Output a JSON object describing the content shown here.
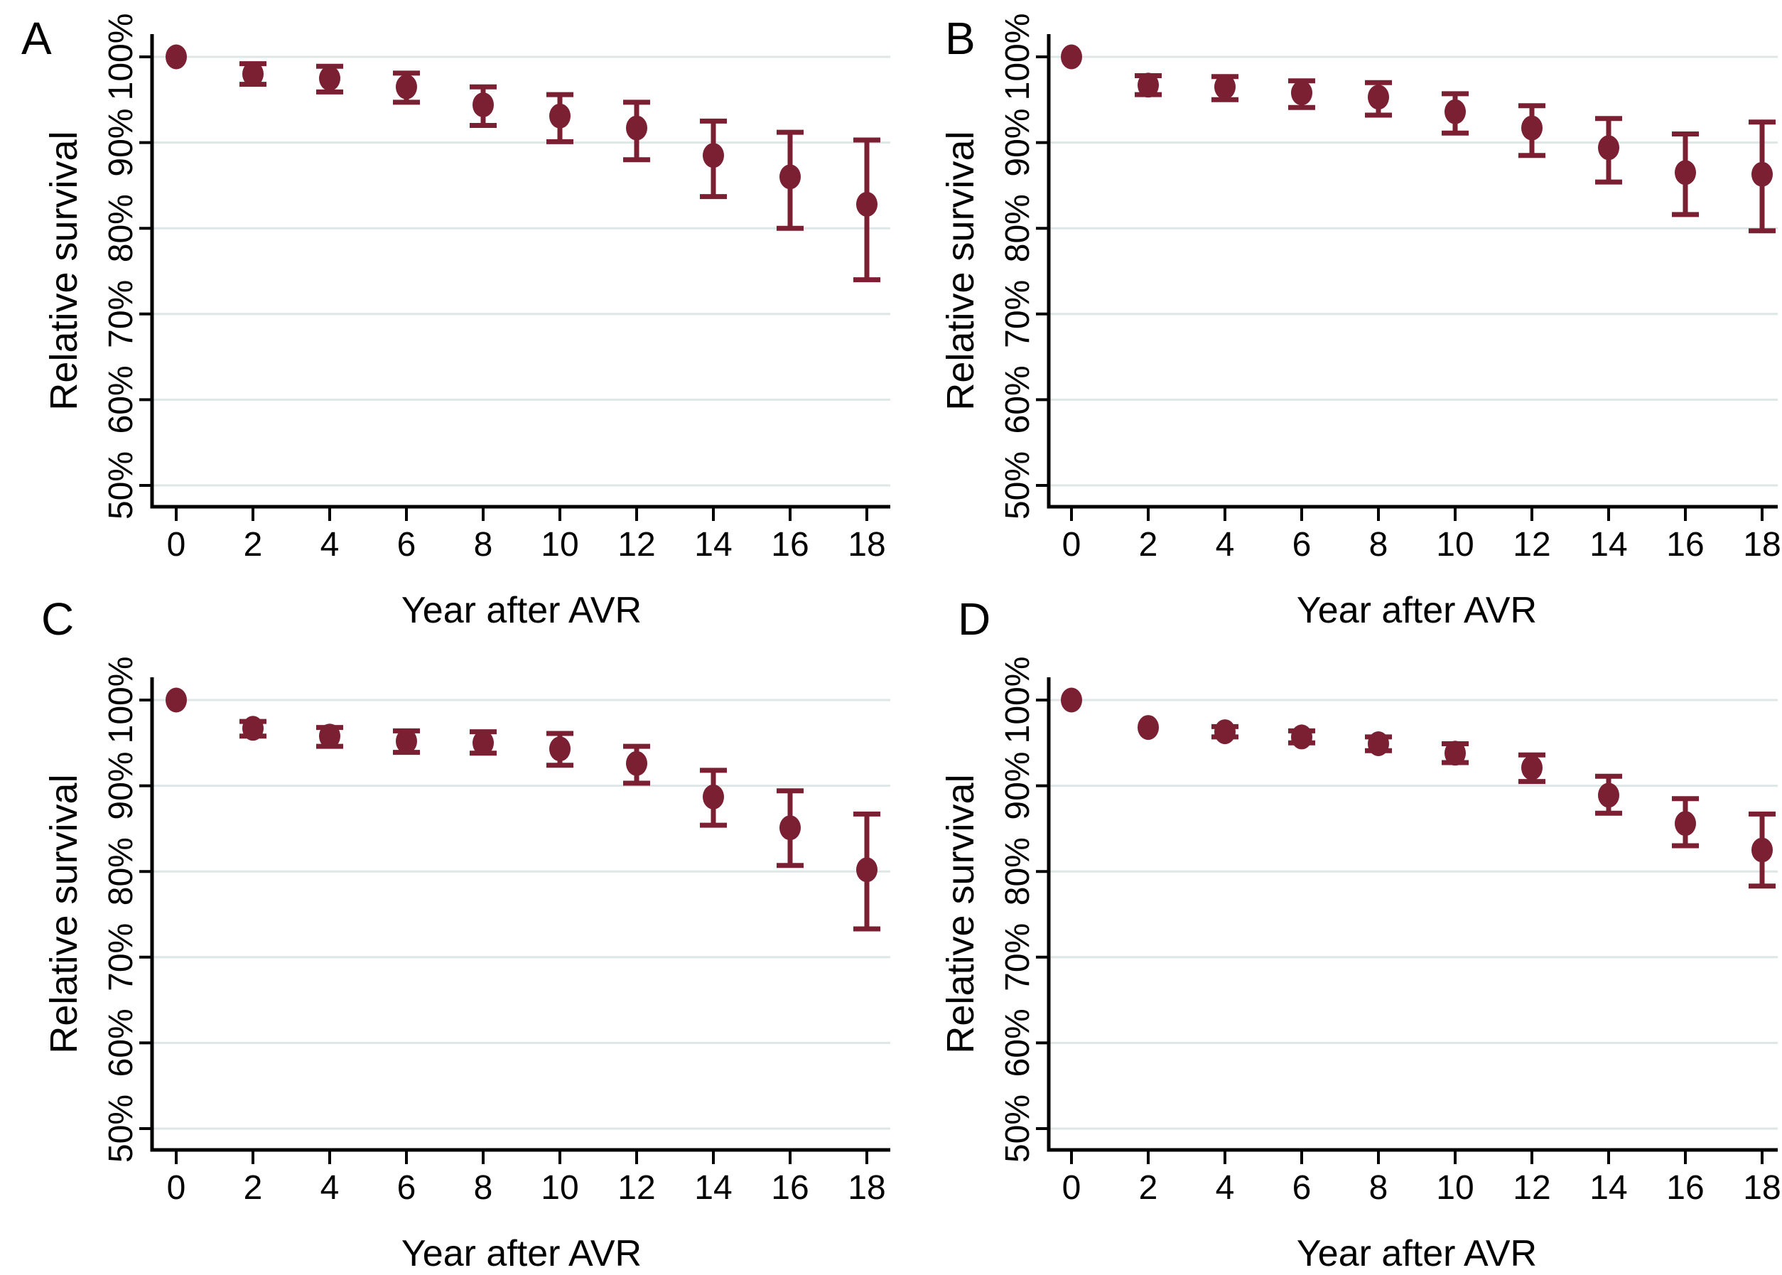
{
  "colors": {
    "marker": "#7B2033",
    "error_bar": "#7B2033",
    "grid": "#DEE6E6",
    "axis": "#000000",
    "text": "#000000",
    "background": "#FFFFFF"
  },
  "chart_data": [
    {
      "type": "scatter",
      "panel": "A",
      "xlabel": "Year after AVR",
      "ylabel": "Relative survival",
      "x": [
        0,
        2,
        4,
        6,
        8,
        10,
        12,
        14,
        16,
        18
      ],
      "y": [
        100,
        98.0,
        97.5,
        96.5,
        94.4,
        93.1,
        91.7,
        88.5,
        86.0,
        82.8
      ],
      "ci_low": [
        100,
        96.8,
        95.9,
        94.7,
        92.0,
        90.1,
        88.0,
        83.7,
        80.0,
        74.0
      ],
      "ci_high": [
        100,
        99.2,
        98.9,
        98.1,
        96.5,
        95.6,
        94.7,
        92.5,
        91.2,
        90.3
      ],
      "xticks": [
        0,
        2,
        4,
        6,
        8,
        10,
        12,
        14,
        16,
        18
      ],
      "ytick_values": [
        50,
        60,
        70,
        80,
        90,
        100
      ],
      "ytick_labels": [
        "50%",
        "60%",
        "70%",
        "80%",
        "90%",
        "100%"
      ],
      "xlim": [
        -0.6,
        18.6
      ],
      "ylim": [
        44,
        103
      ],
      "grid": "horizontal",
      "marker": "filled-circle",
      "error_bars": true,
      "legend": "none"
    },
    {
      "type": "scatter",
      "panel": "B",
      "xlabel": "Year after AVR",
      "ylabel": "Relative survival",
      "x": [
        0,
        2,
        4,
        6,
        8,
        10,
        12,
        14,
        16,
        18
      ],
      "y": [
        100,
        96.7,
        96.5,
        95.8,
        95.3,
        93.6,
        91.7,
        89.4,
        86.5,
        86.3
      ],
      "ci_low": [
        100,
        95.6,
        95.0,
        94.1,
        93.2,
        91.1,
        88.5,
        85.4,
        81.6,
        79.7
      ],
      "ci_high": [
        100,
        97.8,
        97.7,
        97.2,
        97.0,
        95.7,
        94.3,
        92.8,
        91.0,
        92.4
      ],
      "xticks": [
        0,
        2,
        4,
        6,
        8,
        10,
        12,
        14,
        16,
        18
      ],
      "ytick_values": [
        50,
        60,
        70,
        80,
        90,
        100
      ],
      "ytick_labels": [
        "50%",
        "60%",
        "70%",
        "80%",
        "90%",
        "100%"
      ],
      "xlim": [
        -0.6,
        18.6
      ],
      "ylim": [
        44,
        103
      ],
      "grid": "horizontal",
      "marker": "filled-circle",
      "error_bars": true,
      "legend": "none"
    },
    {
      "type": "scatter",
      "panel": "C",
      "xlabel": "Year after AVR",
      "ylabel": "Relative survival",
      "x": [
        0,
        2,
        4,
        6,
        8,
        10,
        12,
        14,
        16,
        18
      ],
      "y": [
        100,
        96.7,
        95.8,
        95.2,
        95.0,
        94.3,
        92.6,
        88.7,
        85.1,
        80.2
      ],
      "ci_low": [
        100,
        95.8,
        94.6,
        93.9,
        93.8,
        92.4,
        90.3,
        85.4,
        80.7,
        73.3
      ],
      "ci_high": [
        100,
        97.5,
        96.8,
        96.4,
        96.3,
        96.1,
        94.6,
        91.8,
        89.4,
        86.7
      ],
      "xticks": [
        0,
        2,
        4,
        6,
        8,
        10,
        12,
        14,
        16,
        18
      ],
      "ytick_values": [
        50,
        60,
        70,
        80,
        90,
        100
      ],
      "ytick_labels": [
        "50%",
        "60%",
        "70%",
        "80%",
        "90%",
        "100%"
      ],
      "xlim": [
        -0.6,
        18.6
      ],
      "ylim": [
        44,
        103
      ],
      "grid": "horizontal",
      "marker": "filled-circle",
      "error_bars": true,
      "legend": "none"
    },
    {
      "type": "scatter",
      "panel": "D",
      "xlabel": "Year after AVR",
      "ylabel": "Relative survival",
      "x": [
        0,
        2,
        4,
        6,
        8,
        10,
        12,
        14,
        16,
        18
      ],
      "y": [
        100,
        96.8,
        96.3,
        95.7,
        94.9,
        93.8,
        92.1,
        88.9,
        85.6,
        82.5
      ],
      "ci_low": [
        100,
        96.3,
        95.7,
        95.0,
        94.1,
        92.7,
        90.5,
        86.8,
        83.0,
        78.3
      ],
      "ci_high": [
        100,
        97.3,
        96.9,
        96.4,
        95.7,
        94.9,
        93.6,
        91.1,
        88.5,
        86.7
      ],
      "xticks": [
        0,
        2,
        4,
        6,
        8,
        10,
        12,
        14,
        16,
        18
      ],
      "ytick_values": [
        50,
        60,
        70,
        80,
        90,
        100
      ],
      "ytick_labels": [
        "50%",
        "60%",
        "70%",
        "80%",
        "90%",
        "100%"
      ],
      "xlim": [
        -0.6,
        18.6
      ],
      "ylim": [
        44,
        103
      ],
      "grid": "horizontal",
      "marker": "filled-circle",
      "error_bars": true,
      "legend": "none"
    }
  ]
}
